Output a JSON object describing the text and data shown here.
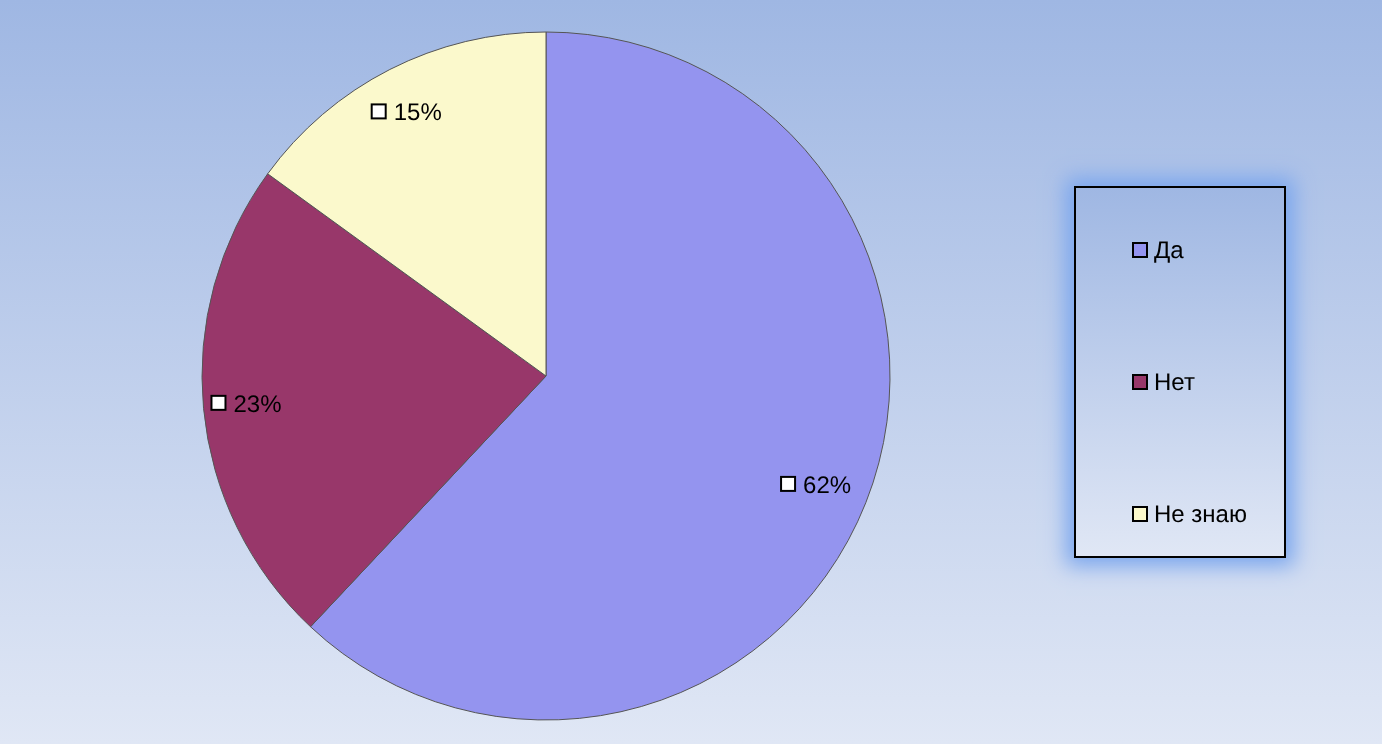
{
  "chart_data": {
    "type": "pie",
    "categories": [
      "Да",
      "Нет",
      "Не знаю"
    ],
    "values": [
      62,
      23,
      15
    ],
    "colors": [
      "#9494ef",
      "#98376a",
      "#fbf9cc"
    ],
    "value_labels": [
      "62%",
      "23%",
      "15%"
    ],
    "legend": "right"
  }
}
